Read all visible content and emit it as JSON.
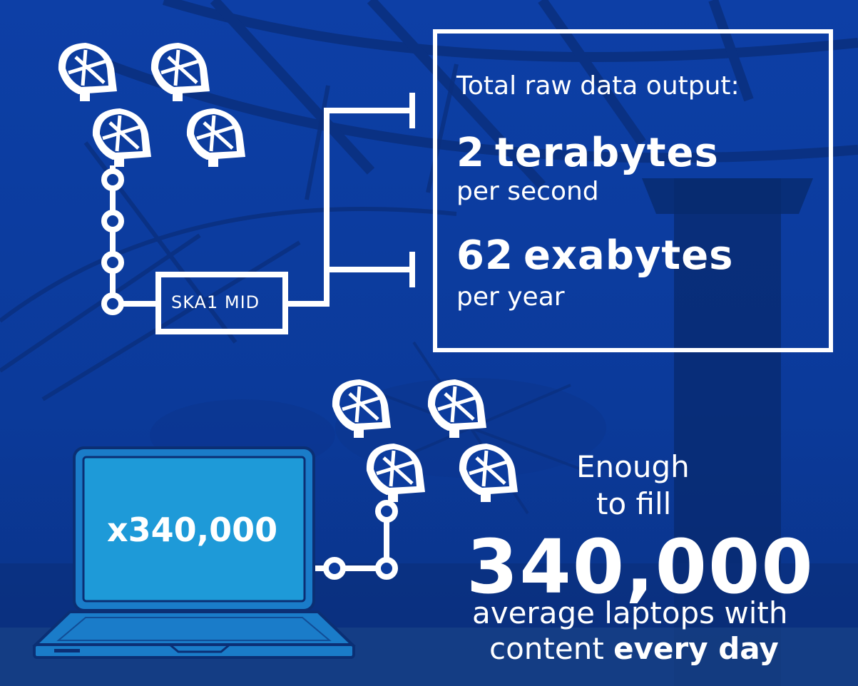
{
  "colors": {
    "background": "#0c3c9e",
    "background_dark": "#082a72",
    "laptop_screen": "#1e9ad8",
    "laptop_body": "#1a7cc9",
    "line": "#ffffff"
  },
  "icons": [
    "radio-dish-icon",
    "laptop-icon"
  ],
  "ska_label": "SKA1 MID",
  "output_box": {
    "title": "Total raw data output:",
    "rate": {
      "value": "2",
      "unit": "terabytes",
      "per": "per second"
    },
    "annual": {
      "value": "62",
      "unit": "exabytes",
      "per": "per year"
    }
  },
  "laptop": {
    "multiplier": "x340,000"
  },
  "fill_text": {
    "line1": "Enough",
    "line2": "to fill",
    "number": "340,000",
    "line3": "average laptops with",
    "line4_plain": "content ",
    "line4_bold": "every day"
  }
}
